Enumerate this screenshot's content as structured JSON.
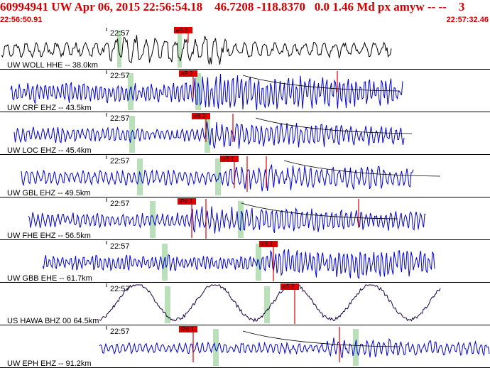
{
  "header": {
    "title": "60994941 UW Apr 06, 2015 22:56:54.18    46.7208 -118.8370   0.0 1.46 Md px amyw -- --    3",
    "start_time": "22:56:50.91",
    "end_time": "22:57:32.46"
  },
  "colors": {
    "header_text": "#d00000",
    "trace_black": "#000000",
    "trace_blue": "#0000d0",
    "trace_purple": "#1a0040",
    "pick_red": "#e00000",
    "window_green": "#b9e0b9",
    "separator": "#000000"
  },
  "traces": [
    {
      "label": "UW WOLL HHE -- 38.0km",
      "time_label": "22:57",
      "color": "black",
      "pick": "eS 2"
    },
    {
      "label": "UW CRF EHZ -- 43.5km",
      "time_label": "22:57",
      "color": "blue",
      "pick": "eP 2"
    },
    {
      "label": "UW LOC EHZ -- 45.4km",
      "time_label": "22:57",
      "color": "blue",
      "pick": "eS 2"
    },
    {
      "label": "UW GBL EHZ -- 49.5km",
      "time_label": "22:57",
      "color": "blue",
      "pick": "eS 1"
    },
    {
      "label": "UW FHE EHZ -- 56.5km",
      "time_label": "22:57",
      "color": "blue",
      "pick": "iPd 1"
    },
    {
      "label": "UW GBB EHE -- 61.7km",
      "time_label": "22:57",
      "color": "blue",
      "pick": "eS 1"
    },
    {
      "label": "US HAWA BHZ 00 64.5km",
      "time_label": "22:57",
      "color": "purple",
      "pick": "eS 2"
    },
    {
      "label": "UW EPH EHZ -- 91.2km",
      "time_label": "22:57",
      "color": "blue",
      "pick": "iPd 1"
    }
  ]
}
